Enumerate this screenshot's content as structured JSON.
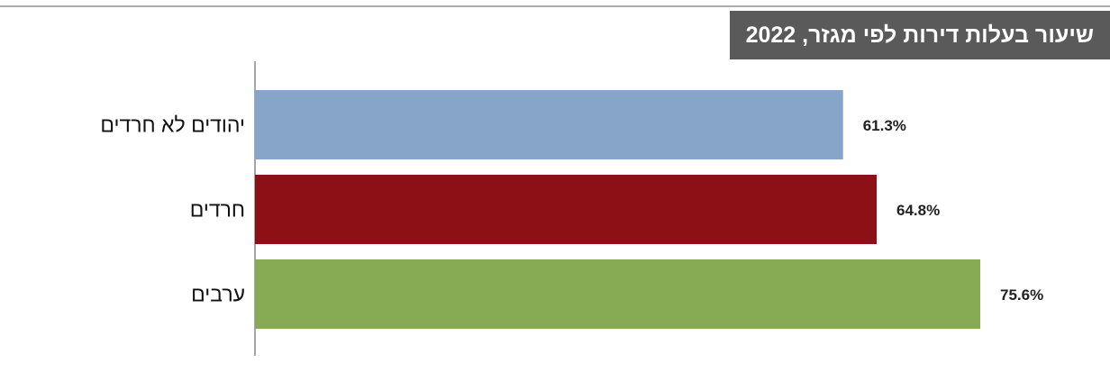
{
  "chart_data": {
    "type": "bar",
    "orientation": "horizontal",
    "title": "שיעור בעלות דירות לפי מגזר, 2022",
    "categories": [
      "יהודים לא חרדים",
      "חרדים",
      "ערבים"
    ],
    "values": [
      61.3,
      64.8,
      75.6
    ],
    "value_labels": [
      "61.3%",
      "64.8%",
      "75.6%"
    ],
    "colors": [
      "#87a4c9",
      "#8d1016",
      "#86ab54"
    ]
  }
}
